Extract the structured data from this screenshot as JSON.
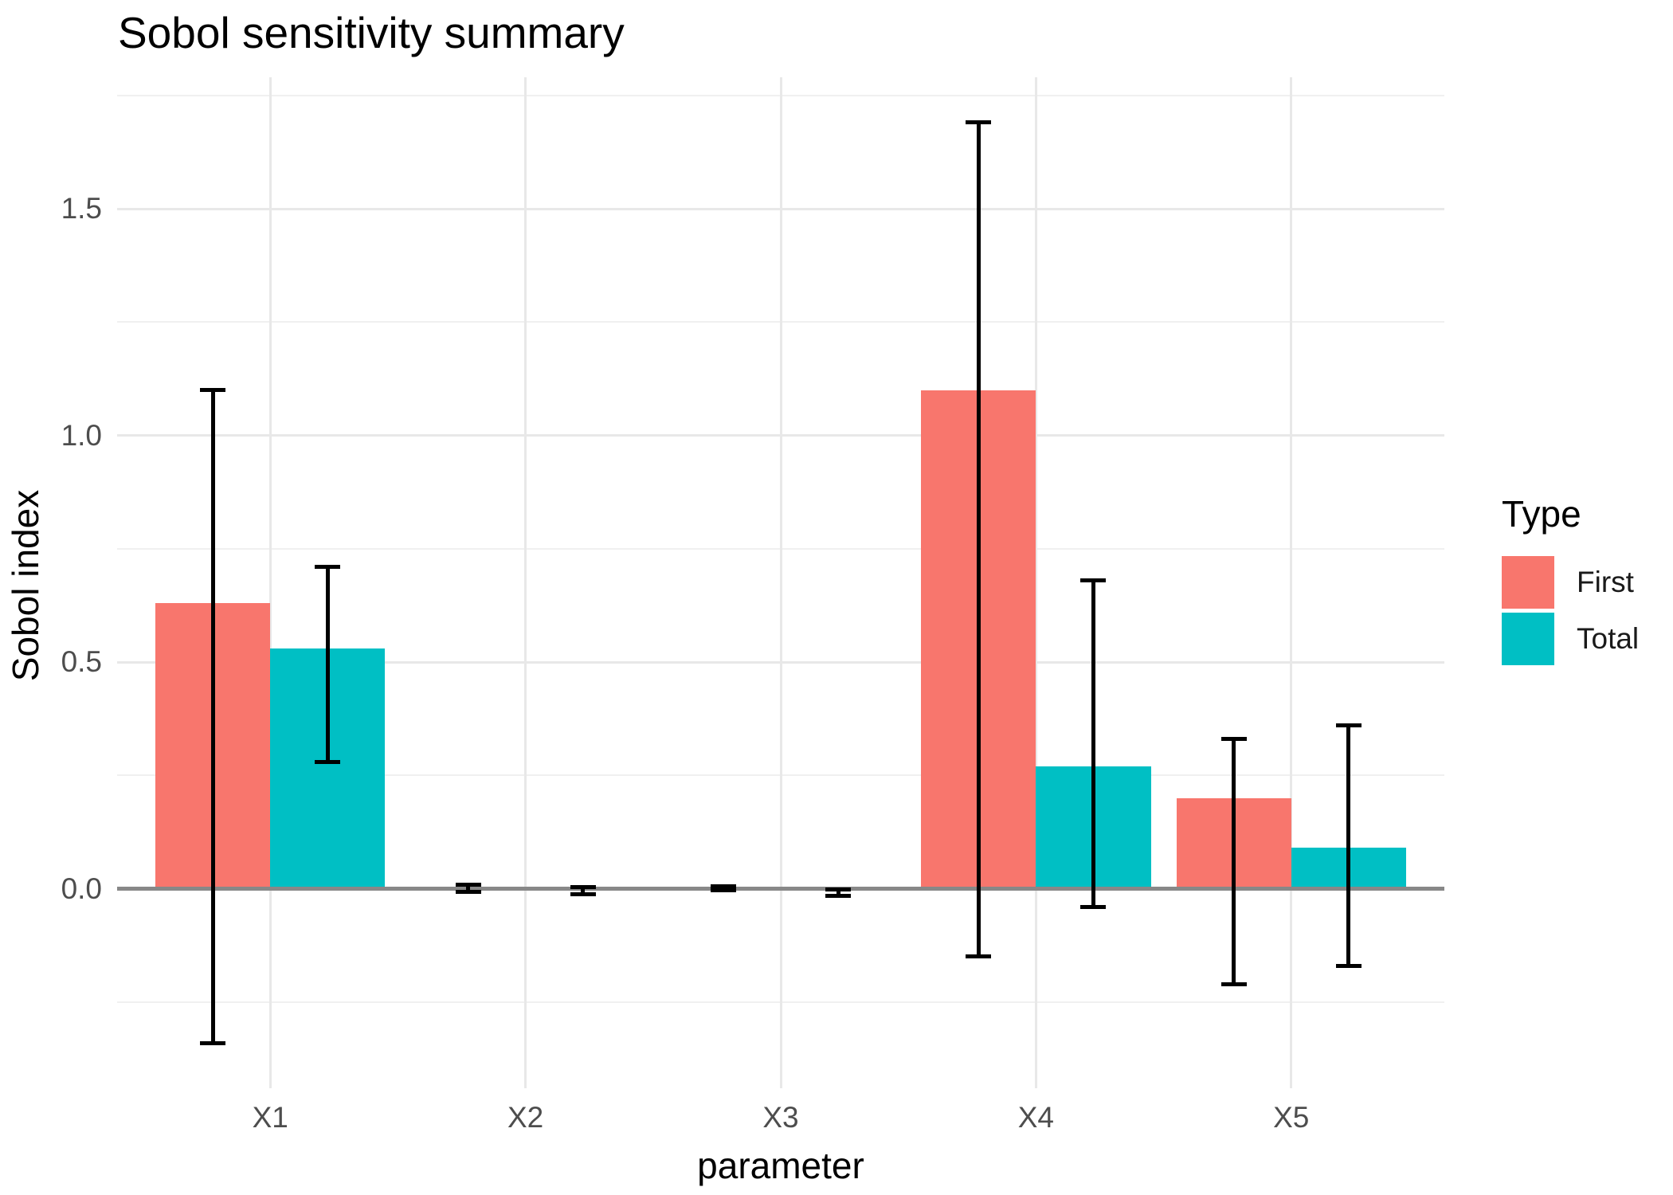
{
  "title": "Sobol sensitivity summary",
  "axes": {
    "x_title": "parameter",
    "y_title": "Sobol index",
    "y_ticks": [
      {
        "value": 0.0,
        "label": "0.0"
      },
      {
        "value": 0.5,
        "label": "0.5"
      },
      {
        "value": 1.0,
        "label": "1.0"
      },
      {
        "value": 1.5,
        "label": "1.5"
      }
    ]
  },
  "legend": {
    "title": "Type",
    "position": "right",
    "items": [
      {
        "label": "First",
        "color": "#F8766D"
      },
      {
        "label": "Total",
        "color": "#00BFC4"
      }
    ]
  },
  "colors": {
    "first_series": "#F8766D",
    "total_series": "#00BFC4",
    "major_gridline": "#e8e8e8",
    "minor_gridline": "#f0f0f0",
    "zero_line": "#888888",
    "error_bar": "#000000",
    "tick_text": "#4d4d4d",
    "background": "#ffffff"
  },
  "chart_data": {
    "type": "bar",
    "title": "Sobol sensitivity summary",
    "xlabel": "parameter",
    "ylabel": "Sobol index",
    "categories": [
      "X1",
      "X2",
      "X3",
      "X4",
      "X5"
    ],
    "series": [
      {
        "name": "First",
        "color": "#F8766D",
        "values": [
          0.63,
          0.003,
          0.002,
          1.1,
          0.2
        ],
        "error_low": [
          -0.34,
          -0.006,
          -0.003,
          -0.15,
          -0.21
        ],
        "error_high": [
          1.1,
          0.009,
          0.005,
          1.69,
          0.33
        ]
      },
      {
        "name": "Total",
        "color": "#00BFC4",
        "values": [
          0.53,
          -0.003,
          -0.005,
          0.27,
          0.09
        ],
        "error_low": [
          0.28,
          -0.012,
          -0.016,
          -0.04,
          -0.17
        ],
        "error_high": [
          0.71,
          0.004,
          -0.002,
          0.68,
          0.36
        ]
      }
    ],
    "ylim": [
      -0.44,
      1.79
    ],
    "y_major_gridlines": [
      0.0,
      0.5,
      1.0,
      1.5
    ],
    "y_minor_gridlines": [
      -0.25,
      0.25,
      0.75,
      1.25,
      1.75
    ],
    "zero_line": 0,
    "grid": true,
    "legend_position": "right",
    "bar_mode": "dodge"
  }
}
